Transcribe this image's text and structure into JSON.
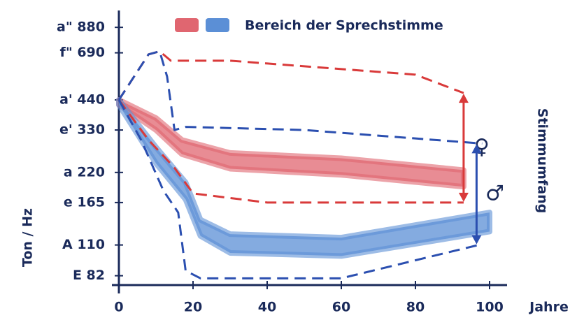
{
  "chart_data": {
    "type": "range-lines",
    "legend": "Bereich der Sprechstimme",
    "ylabel": "Ton / Hz",
    "xlabel": "Jahre",
    "right_label": "Stimmumfang",
    "log_y": true,
    "xlim": [
      0,
      100
    ],
    "xticks": [
      0,
      20,
      40,
      60,
      80,
      100
    ],
    "ylim": [
      75,
      1000
    ],
    "yticks": [
      {
        "value": 880,
        "label": "a\" 880"
      },
      {
        "value": 690,
        "label": "f\" 690"
      },
      {
        "value": 440,
        "label": "a' 440"
      },
      {
        "value": 330,
        "label": "e' 330"
      },
      {
        "value": 220,
        "label": "a 220"
      },
      {
        "value": 165,
        "label": "e 165"
      },
      {
        "value": 110,
        "label": "A 110"
      },
      {
        "value": 82,
        "label": "E 82"
      }
    ],
    "bands": [
      {
        "color": "#e06670",
        "x": [
          0,
          10,
          17,
          30,
          60,
          93
        ],
        "high": [
          440,
          370,
          300,
          265,
          252,
          225
        ],
        "low": [
          420,
          330,
          262,
          228,
          215,
          192
        ]
      },
      {
        "color": "#5b8fd6",
        "x": [
          0,
          10,
          18,
          22,
          30,
          60,
          100
        ],
        "high": [
          440,
          280,
          200,
          140,
          122,
          118,
          150
        ],
        "low": [
          420,
          240,
          170,
          120,
          102,
          99,
          125
        ]
      }
    ],
    "lines": [
      {
        "color": "#d93a3a",
        "x": [
          0,
          8,
          11,
          14,
          30,
          80,
          93
        ],
        "values": [
          440,
          680,
          700,
          640,
          640,
          560,
          470
        ]
      },
      {
        "color": "#d93a3a",
        "x": [
          0,
          8,
          15,
          20,
          40,
          93
        ],
        "values": [
          440,
          300,
          230,
          180,
          165,
          165
        ]
      },
      {
        "color": "#2b4fb0",
        "x": [
          0,
          8,
          11,
          13,
          15,
          18,
          50,
          98
        ],
        "values": [
          440,
          680,
          700,
          550,
          330,
          340,
          330,
          290
        ]
      },
      {
        "color": "#2b4fb0",
        "x": [
          0,
          6,
          12,
          16,
          18,
          22,
          60,
          97
        ],
        "values": [
          440,
          300,
          185,
          150,
          86,
          80,
          80,
          110
        ]
      }
    ],
    "ranges": [
      {
        "symbol": "♀",
        "color": "#d93a3a"
      },
      {
        "symbol": "♂",
        "color": "#2b4fb0"
      }
    ]
  }
}
